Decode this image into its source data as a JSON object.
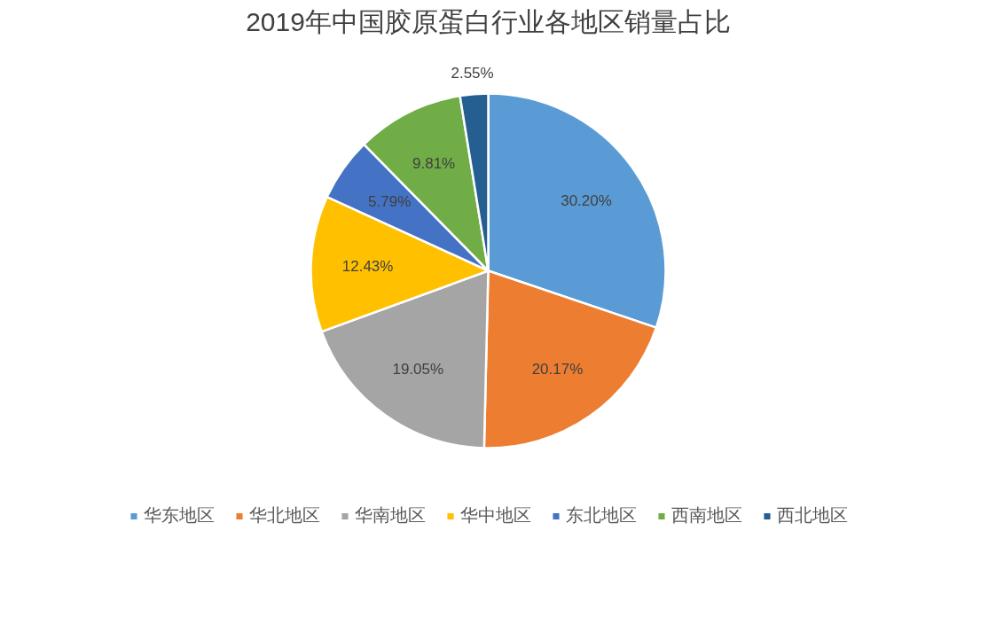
{
  "chart_data": {
    "type": "pie",
    "title": "2019年中国胶原蛋白行业各地区销量占比",
    "categories": [
      "华东地区",
      "华北地区",
      "华南地区",
      "华中地区",
      "东北地区",
      "西南地区",
      "西北地区"
    ],
    "values": [
      30.2,
      20.17,
      19.05,
      12.43,
      5.79,
      9.81,
      2.55
    ],
    "colors": [
      "#5b9bd5",
      "#ed7d31",
      "#a5a5a5",
      "#ffc000",
      "#4472c4",
      "#70ad47",
      "#255e91"
    ],
    "value_labels": [
      "30.20%",
      "20.17%",
      "19.05%",
      "12.43%",
      "5.79%",
      "9.81%",
      "2.55%"
    ],
    "legend": "bottom"
  }
}
